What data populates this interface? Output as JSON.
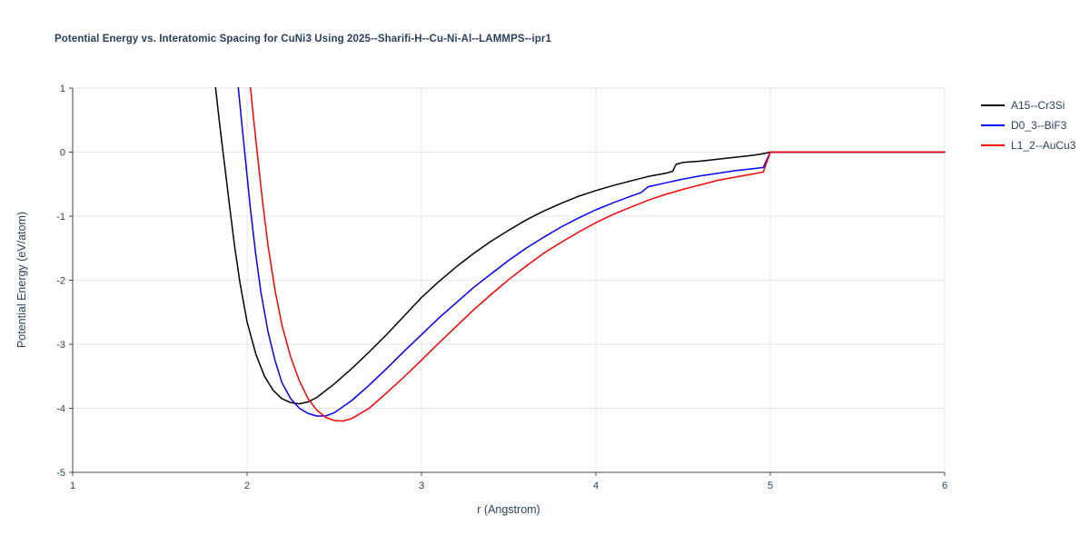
{
  "chart_data": {
    "type": "line",
    "title": "Potential Energy vs. Interatomic Spacing for CuNi3 Using 2025--Sharifi-H--Cu-Ni-Al--LAMMPS--ipr1",
    "xlabel": "r (Angstrom)",
    "ylabel": "Potential Energy (eV/atom)",
    "xlim": [
      1,
      6
    ],
    "ylim": [
      -5,
      1
    ],
    "xticks": [
      1,
      2,
      3,
      4,
      5,
      6
    ],
    "yticks": [
      -5,
      -4,
      -3,
      -2,
      -1,
      0,
      1
    ],
    "grid": true,
    "legend_position": "top-right-outside",
    "series": [
      {
        "name": "A15--Cr3Si",
        "color": "#000000",
        "points": [
          [
            1.8,
            1.6
          ],
          [
            1.82,
            1.0
          ],
          [
            1.84,
            0.5
          ],
          [
            1.86,
            0.05
          ],
          [
            1.88,
            -0.4
          ],
          [
            1.9,
            -0.85
          ],
          [
            1.93,
            -1.5
          ],
          [
            1.96,
            -2.05
          ],
          [
            2.0,
            -2.65
          ],
          [
            2.05,
            -3.15
          ],
          [
            2.1,
            -3.5
          ],
          [
            2.15,
            -3.72
          ],
          [
            2.2,
            -3.85
          ],
          [
            2.25,
            -3.91
          ],
          [
            2.3,
            -3.93
          ],
          [
            2.35,
            -3.9
          ],
          [
            2.4,
            -3.83
          ],
          [
            2.5,
            -3.62
          ],
          [
            2.6,
            -3.38
          ],
          [
            2.7,
            -3.12
          ],
          [
            2.8,
            -2.85
          ],
          [
            2.9,
            -2.56
          ],
          [
            3.0,
            -2.27
          ],
          [
            3.1,
            -2.02
          ],
          [
            3.2,
            -1.79
          ],
          [
            3.3,
            -1.58
          ],
          [
            3.4,
            -1.39
          ],
          [
            3.5,
            -1.22
          ],
          [
            3.6,
            -1.06
          ],
          [
            3.7,
            -0.92
          ],
          [
            3.8,
            -0.8
          ],
          [
            3.9,
            -0.69
          ],
          [
            4.0,
            -0.6
          ],
          [
            4.1,
            -0.52
          ],
          [
            4.2,
            -0.45
          ],
          [
            4.3,
            -0.38
          ],
          [
            4.4,
            -0.33
          ],
          [
            4.44,
            -0.3
          ],
          [
            4.46,
            -0.19
          ],
          [
            4.5,
            -0.16
          ],
          [
            4.6,
            -0.14
          ],
          [
            4.7,
            -0.11
          ],
          [
            4.8,
            -0.08
          ],
          [
            4.9,
            -0.05
          ],
          [
            4.97,
            -0.02
          ],
          [
            5.0,
            0.0
          ],
          [
            5.5,
            0.0
          ],
          [
            6.0,
            0.0
          ]
        ]
      },
      {
        "name": "D0_3--BiF3",
        "color": "#0000ff",
        "points": [
          [
            1.93,
            1.6
          ],
          [
            1.95,
            1.0
          ],
          [
            1.97,
            0.45
          ],
          [
            1.99,
            -0.1
          ],
          [
            2.02,
            -0.9
          ],
          [
            2.05,
            -1.6
          ],
          [
            2.08,
            -2.2
          ],
          [
            2.12,
            -2.8
          ],
          [
            2.16,
            -3.25
          ],
          [
            2.2,
            -3.6
          ],
          [
            2.25,
            -3.85
          ],
          [
            2.3,
            -4.0
          ],
          [
            2.35,
            -4.08
          ],
          [
            2.4,
            -4.12
          ],
          [
            2.45,
            -4.12
          ],
          [
            2.5,
            -4.07
          ],
          [
            2.6,
            -3.88
          ],
          [
            2.7,
            -3.64
          ],
          [
            2.8,
            -3.38
          ],
          [
            2.9,
            -3.11
          ],
          [
            3.0,
            -2.85
          ],
          [
            3.1,
            -2.59
          ],
          [
            3.2,
            -2.35
          ],
          [
            3.3,
            -2.11
          ],
          [
            3.4,
            -1.9
          ],
          [
            3.5,
            -1.69
          ],
          [
            3.6,
            -1.5
          ],
          [
            3.7,
            -1.33
          ],
          [
            3.8,
            -1.17
          ],
          [
            3.9,
            -1.03
          ],
          [
            4.0,
            -0.9
          ],
          [
            4.1,
            -0.79
          ],
          [
            4.2,
            -0.69
          ],
          [
            4.26,
            -0.63
          ],
          [
            4.3,
            -0.54
          ],
          [
            4.4,
            -0.48
          ],
          [
            4.5,
            -0.42
          ],
          [
            4.6,
            -0.37
          ],
          [
            4.7,
            -0.33
          ],
          [
            4.8,
            -0.29
          ],
          [
            4.9,
            -0.26
          ],
          [
            4.96,
            -0.24
          ],
          [
            4.99,
            -0.06
          ],
          [
            5.0,
            0.0
          ],
          [
            6.0,
            0.0
          ]
        ]
      },
      {
        "name": "L1_2--AuCu3",
        "color": "#ff0000",
        "points": [
          [
            2.0,
            1.6
          ],
          [
            2.02,
            1.0
          ],
          [
            2.04,
            0.45
          ],
          [
            2.06,
            -0.05
          ],
          [
            2.09,
            -0.8
          ],
          [
            2.12,
            -1.45
          ],
          [
            2.16,
            -2.15
          ],
          [
            2.2,
            -2.7
          ],
          [
            2.25,
            -3.2
          ],
          [
            2.3,
            -3.57
          ],
          [
            2.35,
            -3.85
          ],
          [
            2.4,
            -4.03
          ],
          [
            2.45,
            -4.14
          ],
          [
            2.5,
            -4.19
          ],
          [
            2.55,
            -4.2
          ],
          [
            2.6,
            -4.16
          ],
          [
            2.7,
            -4.0
          ],
          [
            2.8,
            -3.76
          ],
          [
            2.9,
            -3.51
          ],
          [
            3.0,
            -3.25
          ],
          [
            3.1,
            -2.98
          ],
          [
            3.2,
            -2.72
          ],
          [
            3.3,
            -2.46
          ],
          [
            3.4,
            -2.22
          ],
          [
            3.5,
            -1.99
          ],
          [
            3.6,
            -1.78
          ],
          [
            3.7,
            -1.58
          ],
          [
            3.8,
            -1.41
          ],
          [
            3.9,
            -1.25
          ],
          [
            4.0,
            -1.1
          ],
          [
            4.1,
            -0.97
          ],
          [
            4.2,
            -0.86
          ],
          [
            4.3,
            -0.75
          ],
          [
            4.4,
            -0.66
          ],
          [
            4.5,
            -0.58
          ],
          [
            4.6,
            -0.51
          ],
          [
            4.7,
            -0.44
          ],
          [
            4.8,
            -0.39
          ],
          [
            4.9,
            -0.34
          ],
          [
            4.96,
            -0.31
          ],
          [
            4.99,
            -0.08
          ],
          [
            5.0,
            0.0
          ],
          [
            6.0,
            0.0
          ]
        ]
      }
    ]
  }
}
